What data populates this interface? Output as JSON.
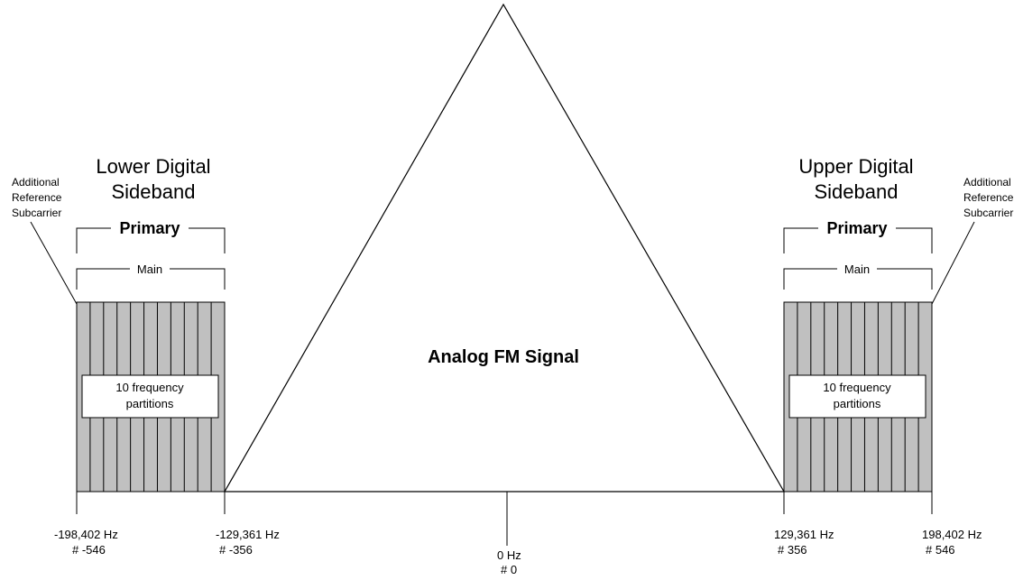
{
  "analog": {
    "label": "Analog FM Signal"
  },
  "lower": {
    "title_line1": "Lower Digital",
    "title_line2": "Sideband",
    "primary_label": "Primary",
    "main_label": "Main",
    "partitions_line1": "10 frequency",
    "partitions_line2": "partitions",
    "ref_line1": "Additional",
    "ref_line2": "Reference",
    "ref_line3": "Subcarrier",
    "outer_freq": "-198,402 Hz",
    "outer_num": "# -546",
    "inner_freq": "-129,361 Hz",
    "inner_num": "# -356"
  },
  "upper": {
    "title_line1": "Upper Digital",
    "title_line2": "Sideband",
    "primary_label": "Primary",
    "main_label": "Main",
    "partitions_line1": "10 frequency",
    "partitions_line2": "partitions",
    "ref_line1": "Additional",
    "ref_line2": "Reference",
    "ref_line3": "Subcarrier",
    "inner_freq": "129,361 Hz",
    "inner_num": "# 356",
    "outer_freq": "198,402 Hz",
    "outer_num": "# 546"
  },
  "center": {
    "freq": "0 Hz",
    "num": "# 0"
  },
  "colors": {
    "partition_fill": "#c0c0c0",
    "line": "#000000",
    "background": "#ffffff"
  }
}
